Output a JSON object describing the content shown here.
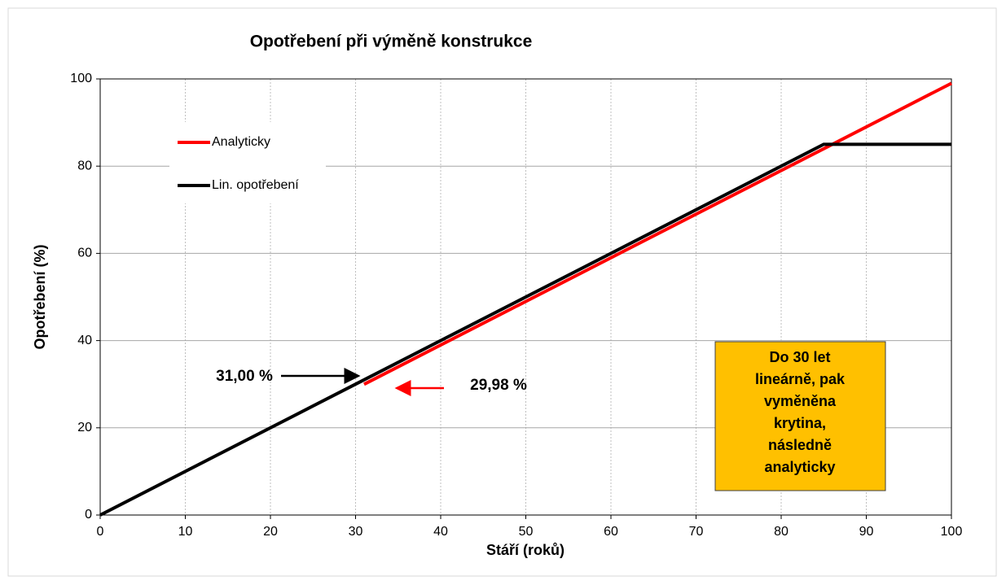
{
  "chart_data": {
    "type": "line",
    "title": "Opotřebení při výměně konstrukce",
    "xlabel": "Stáří (roků)",
    "ylabel": "Opotřebení (%)",
    "xlim": [
      0,
      100
    ],
    "ylim": [
      0,
      100
    ],
    "xticks": [
      0,
      10,
      20,
      30,
      40,
      50,
      60,
      70,
      80,
      90,
      100
    ],
    "yticks": [
      0,
      20,
      40,
      60,
      80,
      100
    ],
    "grid": true,
    "legend": "upper left",
    "series": [
      {
        "name": "Analyticky",
        "color": "#ff0000",
        "x": [
          31,
          100
        ],
        "values": [
          29.98,
          99
        ]
      },
      {
        "name": "Lin. opotřebení",
        "color": "#000000",
        "x": [
          0,
          31,
          85,
          100
        ],
        "values": [
          0,
          31,
          85,
          85
        ]
      }
    ],
    "annotations": [
      {
        "text": "31,00 %",
        "color": "#000000"
      },
      {
        "text": "29,98 %",
        "color": "#ff0000"
      }
    ],
    "note_lines": [
      "Do 30 let",
      "lineárně, pak",
      "vyměněna",
      "krytina,",
      "následně",
      "analyticky"
    ]
  }
}
